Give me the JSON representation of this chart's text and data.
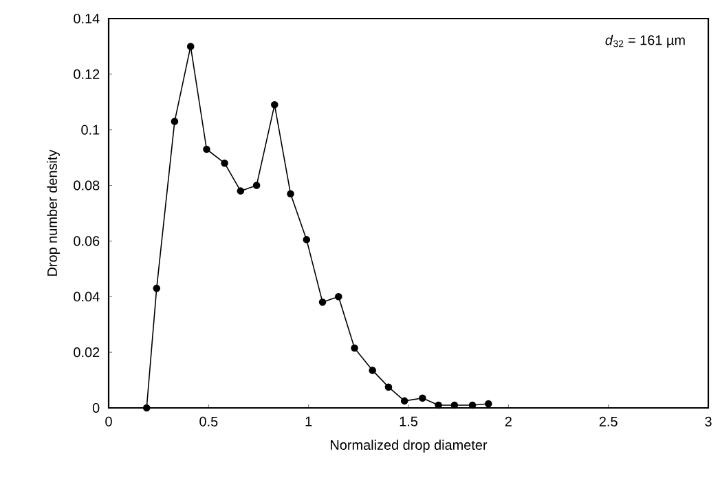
{
  "chart_data": {
    "type": "line",
    "xlabel": "Normalized drop diameter",
    "ylabel": "Drop number density",
    "annotations": [
      "*d*$_{32}$ = 161 µm"
    ],
    "x": [
      0.19,
      0.24,
      0.33,
      0.41,
      0.49,
      0.58,
      0.66,
      0.74,
      0.83,
      0.91,
      0.99,
      1.07,
      1.15,
      1.23,
      1.32,
      1.4,
      1.48,
      1.57,
      1.65,
      1.73,
      1.82,
      1.9
    ],
    "series": [
      {
        "color": "#000000",
        "values": [
          0,
          0.043,
          0.103,
          0.13,
          0.093,
          0.088,
          0.078,
          0.08,
          0.109,
          0.077,
          0.0605,
          0.038,
          0.04,
          0.0215,
          0.0135,
          0.0075,
          0.0025,
          0.0035,
          0.001,
          0.001,
          0.001,
          0.0015
        ]
      }
    ],
    "xlim": [
      0,
      3
    ],
    "ylim": [
      0,
      0.14
    ],
    "xticks": [
      0,
      0.5,
      1,
      1.5,
      2,
      2.5,
      3
    ],
    "yticks": [
      0,
      0.02,
      0.04,
      0.06,
      0.08,
      0.1,
      0.12,
      0.14
    ],
    "grid": false,
    "marker": "circle",
    "line_style": "solid"
  }
}
